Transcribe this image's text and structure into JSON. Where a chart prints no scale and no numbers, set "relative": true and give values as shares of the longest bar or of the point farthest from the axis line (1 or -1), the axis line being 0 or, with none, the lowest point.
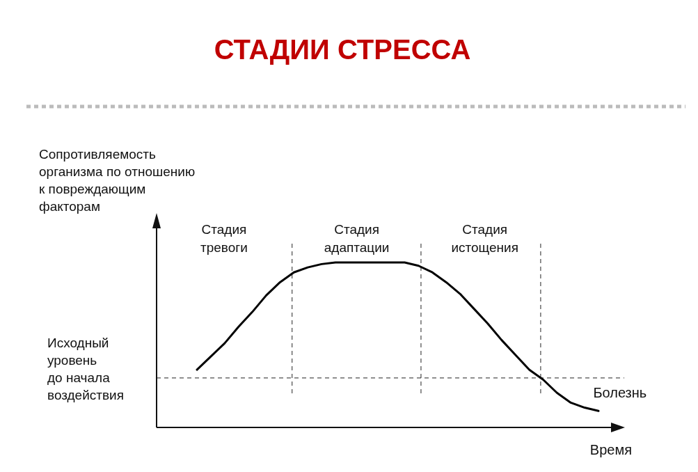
{
  "chart_data": {
    "type": "line",
    "title": "СТАДИИ СТРЕССА",
    "relative": true,
    "line_style": "solid",
    "ylabel": "Сопротивляемость\nорганизма по отношению\nк повреждающим\nфакторам",
    "xlabel": "Время",
    "categories": [
      null,
      null,
      null,
      null,
      null,
      null,
      null,
      null,
      null,
      null,
      null,
      null,
      null,
      null,
      null,
      null,
      null,
      null,
      null,
      null,
      null,
      null,
      null,
      null,
      null,
      null,
      null,
      null,
      null,
      null
    ],
    "series": [
      {
        "color": "#000000",
        "values": [
          0.35,
          0.43,
          0.51,
          0.61,
          0.7,
          0.8,
          0.88,
          0.94,
          0.97,
          0.99,
          1,
          1,
          1,
          1,
          1,
          1,
          0.98,
          0.94,
          0.88,
          0.81,
          0.72,
          0.63,
          0.53,
          0.44,
          0.35,
          0.29,
          0.21,
          0.15,
          0.12,
          0.1
        ]
      }
    ],
    "ref_lines": [
      {
        "axis": "y",
        "value": 0.3,
        "label": "Исходный\nуровень\nдо начала\nвоздействия",
        "line_style": "dashed"
      }
    ],
    "annotations": [
      "Стадия\nтревоги",
      "Стадия\nадаптации",
      "Стадия\nистощения",
      "Болезнь"
    ]
  }
}
